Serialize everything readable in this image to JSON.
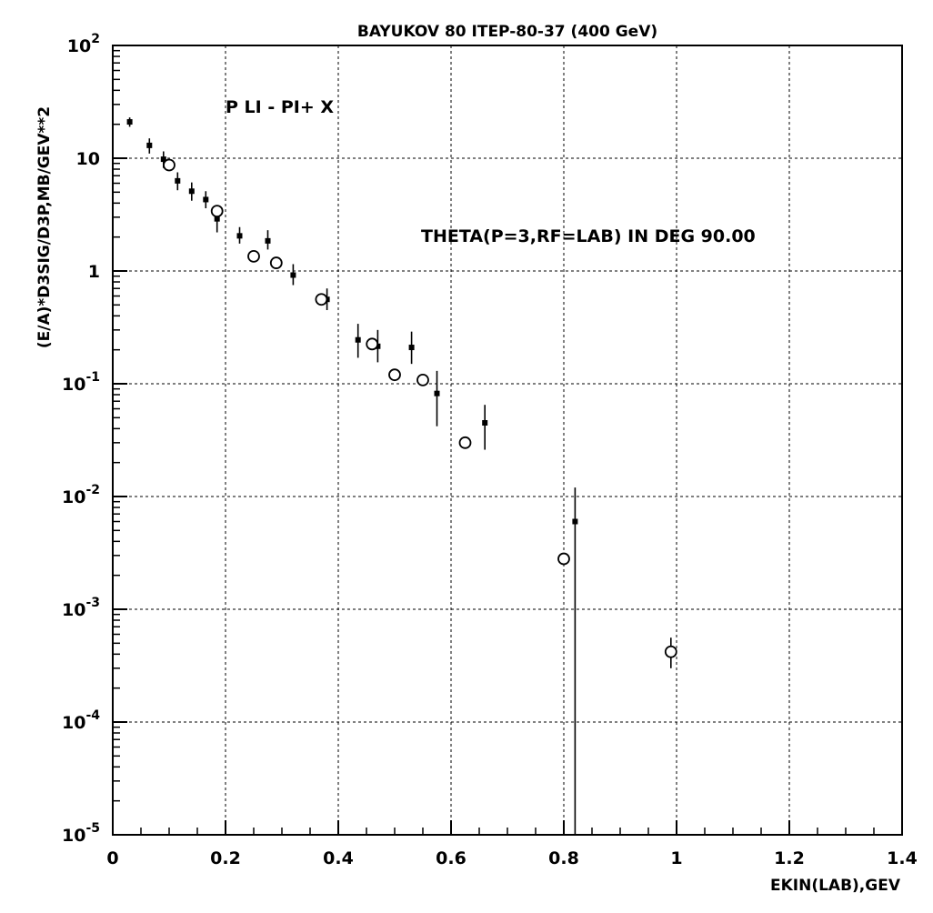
{
  "chart_data": {
    "type": "scatter",
    "title": "BAYUKOV 80   ITEP-80-37 (400 GeV)",
    "reaction": "P LI - PI+ X",
    "annotation": "THETA(P=3,RF=LAB) IN DEG   90.00",
    "xlabel": "EKIN(LAB),GEV",
    "ylabel": "(E/A)*D3SIG/D3P,MB/GEV**2",
    "xlim": [
      0,
      1.4
    ],
    "ylim": [
      1e-05,
      100
    ],
    "yscale": "log",
    "grid": true,
    "x_ticks": [
      "0",
      "0.2",
      "0.4",
      "0.6",
      "0.8",
      "1",
      "1.2",
      "1.4"
    ],
    "y_ticks": [
      {
        "base": "10",
        "exp": "-5"
      },
      {
        "base": "10",
        "exp": "-4"
      },
      {
        "base": "10",
        "exp": "-3"
      },
      {
        "base": "10",
        "exp": "-2"
      },
      {
        "base": "10",
        "exp": "-1"
      },
      {
        "base": "1",
        "exp": ""
      },
      {
        "base": "10",
        "exp": ""
      },
      {
        "base": "10",
        "exp": "2"
      }
    ],
    "series": [
      {
        "marker": "dot",
        "points": [
          {
            "x": 0.03,
            "y": 21,
            "ylo": 19,
            "yhi": 23
          },
          {
            "x": 0.065,
            "y": 13,
            "ylo": 11,
            "yhi": 15
          },
          {
            "x": 0.09,
            "y": 9.8,
            "ylo": 8.2,
            "yhi": 11.5
          },
          {
            "x": 0.115,
            "y": 6.3,
            "ylo": 5.2,
            "yhi": 7.5
          },
          {
            "x": 0.14,
            "y": 5.1,
            "ylo": 4.2,
            "yhi": 6.1
          },
          {
            "x": 0.165,
            "y": 4.3,
            "ylo": 3.6,
            "yhi": 5.1
          },
          {
            "x": 0.185,
            "y": 2.9,
            "ylo": 2.2,
            "yhi": 3.6
          },
          {
            "x": 0.225,
            "y": 2.05,
            "ylo": 1.75,
            "yhi": 2.45
          },
          {
            "x": 0.275,
            "y": 1.85,
            "ylo": 1.55,
            "yhi": 2.3
          },
          {
            "x": 0.32,
            "y": 0.92,
            "ylo": 0.75,
            "yhi": 1.15
          },
          {
            "x": 0.38,
            "y": 0.56,
            "ylo": 0.45,
            "yhi": 0.7
          },
          {
            "x": 0.435,
            "y": 0.245,
            "ylo": 0.17,
            "yhi": 0.34
          },
          {
            "x": 0.47,
            "y": 0.215,
            "ylo": 0.155,
            "yhi": 0.3
          },
          {
            "x": 0.53,
            "y": 0.21,
            "ylo": 0.15,
            "yhi": 0.29
          },
          {
            "x": 0.575,
            "y": 0.082,
            "ylo": 0.042,
            "yhi": 0.13
          },
          {
            "x": 0.66,
            "y": 0.045,
            "ylo": 0.026,
            "yhi": 0.065
          },
          {
            "x": 0.82,
            "y": 0.006,
            "ylo": 1e-05,
            "yhi": 0.012
          }
        ]
      },
      {
        "marker": "open-circle",
        "points": [
          {
            "x": 0.1,
            "y": 8.7
          },
          {
            "x": 0.185,
            "y": 3.4
          },
          {
            "x": 0.25,
            "y": 1.35
          },
          {
            "x": 0.29,
            "y": 1.18
          },
          {
            "x": 0.37,
            "y": 0.56
          },
          {
            "x": 0.46,
            "y": 0.225
          },
          {
            "x": 0.5,
            "y": 0.12
          },
          {
            "x": 0.55,
            "y": 0.108
          },
          {
            "x": 0.625,
            "y": 0.03
          },
          {
            "x": 0.8,
            "y": 0.0028
          },
          {
            "x": 0.99,
            "y": 0.00042,
            "ylo": 0.0003,
            "yhi": 0.00056
          }
        ]
      }
    ]
  }
}
